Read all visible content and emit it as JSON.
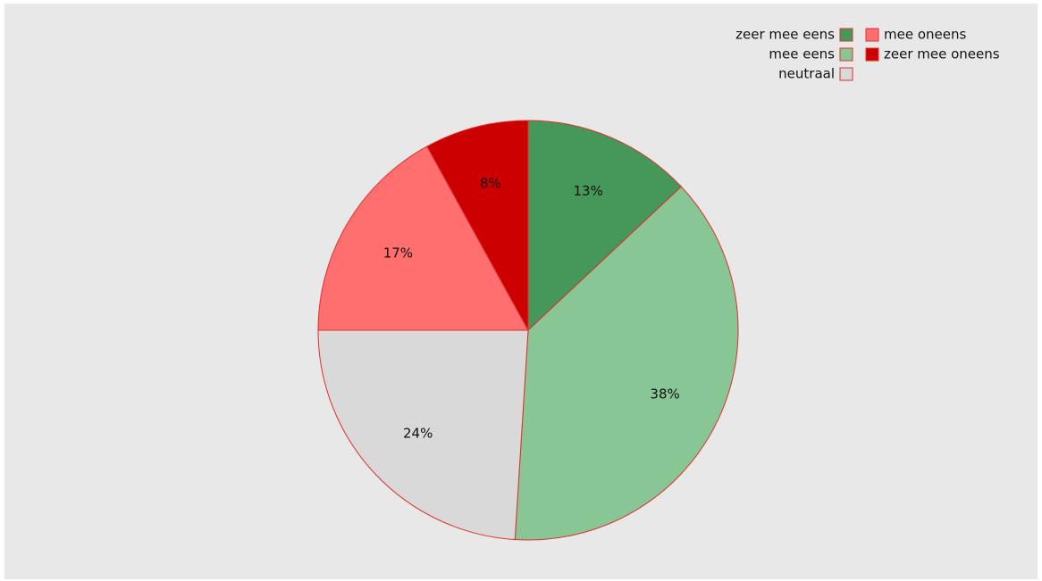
{
  "chart_data": {
    "type": "pie",
    "title": "",
    "slices": [
      {
        "label": "zeer mee eens",
        "value": 13,
        "display": "13%",
        "color": "#46975a"
      },
      {
        "label": "mee eens",
        "value": 38,
        "display": "38%",
        "color": "#88c695"
      },
      {
        "label": "neutraal",
        "value": 24,
        "display": "24%",
        "color": "#d9d9d9"
      },
      {
        "label": "mee oneens",
        "value": 17,
        "display": "17%",
        "color": "#ff6f6f"
      },
      {
        "label": "zeer mee oneens",
        "value": 8,
        "display": "8%",
        "color": "#cc0000"
      }
    ],
    "slice_border_color": "#e0302b",
    "background_color": "#e8e8e8",
    "legend": {
      "placement": "top-right",
      "entries": [
        "zeer mee eens",
        "mee eens",
        "neutraal",
        "mee oneens",
        "zeer mee oneens"
      ]
    }
  }
}
